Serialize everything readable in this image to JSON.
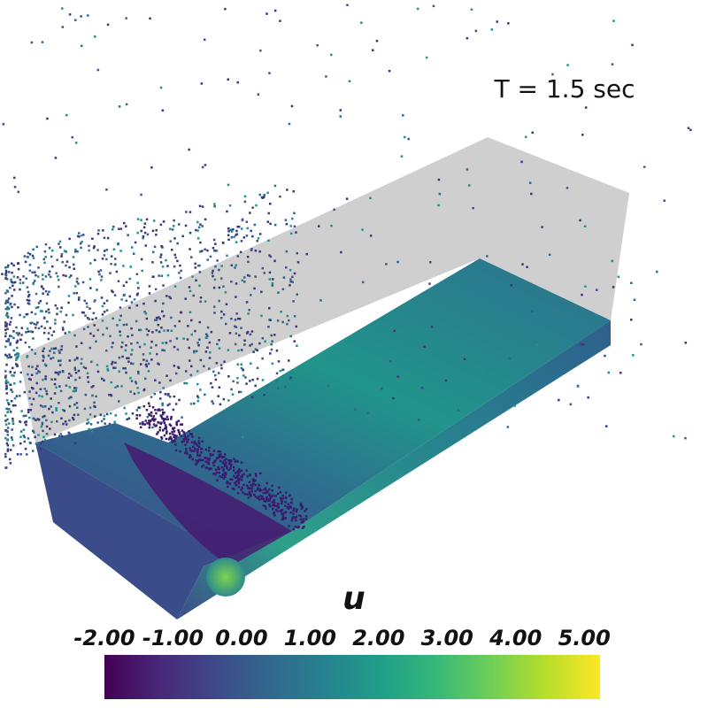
{
  "annotation": "T = 1.5 sec",
  "colorbar": {
    "title": "u",
    "range": [
      -2.0,
      5.23
    ],
    "ticks": [
      {
        "value": -2,
        "label": "-2.00"
      },
      {
        "value": -1,
        "label": "-1.00"
      },
      {
        "value": 0,
        "label": "0.00"
      },
      {
        "value": 1,
        "label": "1.00"
      },
      {
        "value": 2,
        "label": "2.00"
      },
      {
        "value": 3,
        "label": "3.00"
      },
      {
        "value": 4,
        "label": "4.00"
      },
      {
        "value": 5,
        "label": "5.00"
      }
    ],
    "colormap": [
      "#440154",
      "#482878",
      "#3e4989",
      "#31688e",
      "#26828e",
      "#1f9e89",
      "#35b779",
      "#6ece58",
      "#b5de2b",
      "#fde725"
    ]
  }
}
